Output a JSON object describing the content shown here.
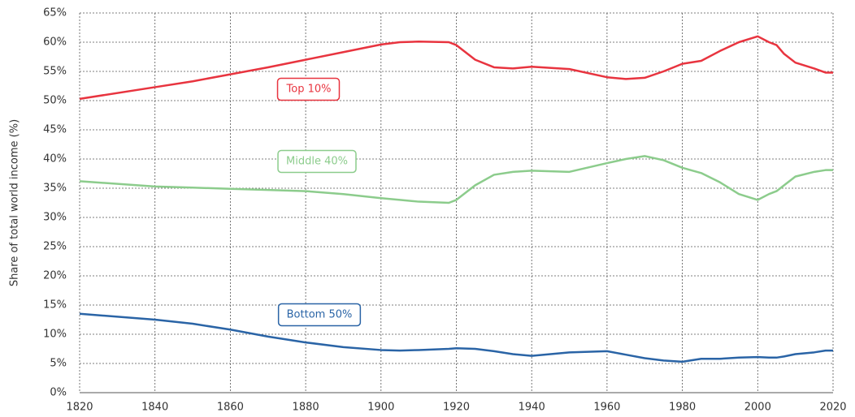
{
  "chart_data": {
    "type": "line",
    "y_label": "Share of total world income (%)",
    "x": [
      1820,
      1840,
      1850,
      1860,
      1870,
      1880,
      1890,
      1900,
      1905,
      1910,
      1918,
      1920,
      1925,
      1930,
      1935,
      1940,
      1950,
      1960,
      1965,
      1970,
      1975,
      1980,
      1985,
      1990,
      1995,
      2000,
      2003,
      2005,
      2007,
      2010,
      2015,
      2018,
      2020
    ],
    "series": [
      {
        "name": "Top 10%",
        "color": "#e8343f",
        "values": [
          50.3,
          52.3,
          53.3,
          54.5,
          55.7,
          57,
          58.3,
          59.6,
          60,
          60.1,
          60,
          59.5,
          57,
          55.7,
          55.5,
          55.8,
          55.4,
          54,
          53.7,
          53.9,
          55,
          56.3,
          56.8,
          58.5,
          60,
          61,
          60,
          59.5,
          58,
          56.5,
          55.5,
          54.8,
          54.8
        ]
      },
      {
        "name": "Middle 40%",
        "color": "#8ccc8c",
        "values": [
          36.2,
          35.3,
          35.1,
          34.9,
          34.7,
          34.5,
          34,
          33.3,
          33,
          32.7,
          32.5,
          33,
          35.5,
          37.3,
          37.8,
          38,
          37.8,
          39.3,
          40,
          40.5,
          39.8,
          38.5,
          37.6,
          36,
          34,
          33,
          34,
          34.5,
          35.5,
          37,
          37.8,
          38.1,
          38.1
        ]
      },
      {
        "name": "Bottom 50%",
        "color": "#2a64a6",
        "values": [
          13.5,
          12.5,
          11.8,
          10.8,
          9.6,
          8.6,
          7.8,
          7.3,
          7.2,
          7.3,
          7.5,
          7.6,
          7.5,
          7.1,
          6.6,
          6.3,
          6.9,
          7.1,
          6.5,
          5.9,
          5.5,
          5.3,
          5.8,
          5.8,
          6,
          6.1,
          6,
          6,
          6.2,
          6.6,
          6.9,
          7.2,
          7.2
        ]
      }
    ],
    "xlim": [
      1820,
      2020
    ],
    "xticks": [
      1820,
      1840,
      1860,
      1880,
      1900,
      1920,
      1940,
      1960,
      1980,
      2000,
      2020
    ],
    "ylim": [
      0,
      65
    ],
    "yticks": [
      {
        "value": 0,
        "label": "0%"
      },
      {
        "value": 5,
        "label": "5%"
      },
      {
        "value": 10,
        "label": "10%"
      },
      {
        "value": 15,
        "label": "15%"
      },
      {
        "value": 20,
        "label": "20%"
      },
      {
        "value": 25,
        "label": "25%"
      },
      {
        "value": 30,
        "label": "30%"
      },
      {
        "value": 35,
        "label": "35%"
      },
      {
        "value": 40,
        "label": "40%"
      },
      {
        "value": 45,
        "label": "45%"
      },
      {
        "value": 50,
        "label": "50%"
      },
      {
        "value": 55,
        "label": "55%"
      },
      {
        "value": 60,
        "label": "60%"
      },
      {
        "value": 65,
        "label": "65%"
      }
    ],
    "grid": true
  }
}
